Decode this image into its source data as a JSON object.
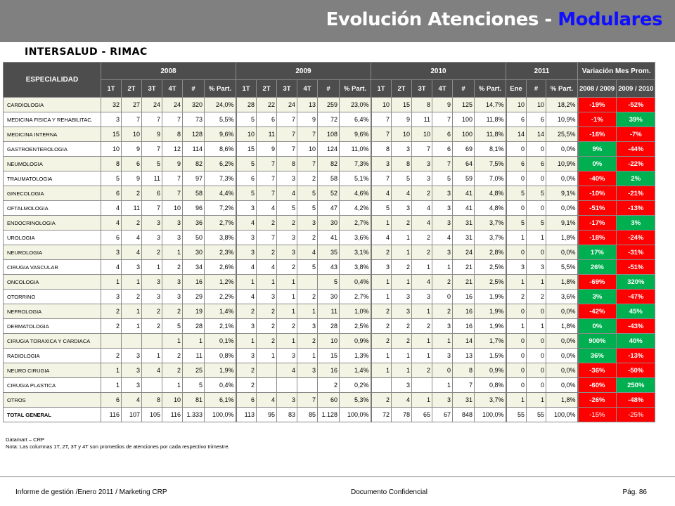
{
  "header": {
    "title_main": "Evolución Atenciones - ",
    "title_highlight": "Modulares"
  },
  "subtitle": "INTERSALUD - RIMAC",
  "table": {
    "especialidad_label": "ESPECIALIDAD",
    "years": [
      "2008",
      "2009",
      "2010",
      "2011"
    ],
    "variation_label": "Variación Mes Prom.",
    "variation_sub": [
      "2008 / 2009",
      "2009 / 2010"
    ],
    "subcols_year": [
      "1T",
      "2T",
      "3T",
      "4T",
      "#",
      "% Part."
    ],
    "subcols_2011": [
      "Ene",
      "#",
      "% Part."
    ],
    "rows": [
      {
        "name": "CARDIOLOGIA",
        "y2008": [
          "32",
          "27",
          "24",
          "24",
          "320",
          "24,0%"
        ],
        "y2009": [
          "28",
          "22",
          "24",
          "13",
          "259",
          "23,0%"
        ],
        "y2010": [
          "10",
          "15",
          "8",
          "9",
          "125",
          "14,7%"
        ],
        "y2011": [
          "10",
          "10",
          "18,2%"
        ],
        "var": [
          "-19%",
          "-52%"
        ],
        "var_sign": [
          "neg",
          "neg"
        ]
      },
      {
        "name": "MEDICINA FISICA Y REHABILITAC.",
        "y2008": [
          "3",
          "7",
          "7",
          "7",
          "73",
          "5,5%"
        ],
        "y2009": [
          "5",
          "6",
          "7",
          "9",
          "72",
          "6,4%"
        ],
        "y2010": [
          "7",
          "9",
          "11",
          "7",
          "100",
          "11,8%"
        ],
        "y2011": [
          "6",
          "6",
          "10,9%"
        ],
        "var": [
          "-1%",
          "39%"
        ],
        "var_sign": [
          "neg",
          "pos"
        ]
      },
      {
        "name": "MEDICINA INTERNA",
        "y2008": [
          "15",
          "10",
          "9",
          "8",
          "128",
          "9,6%"
        ],
        "y2009": [
          "10",
          "11",
          "7",
          "7",
          "108",
          "9,6%"
        ],
        "y2010": [
          "7",
          "10",
          "10",
          "6",
          "100",
          "11,8%"
        ],
        "y2011": [
          "14",
          "14",
          "25,5%"
        ],
        "var": [
          "-16%",
          "-7%"
        ],
        "var_sign": [
          "neg",
          "neg"
        ]
      },
      {
        "name": "GASTROENTEROLOGIA",
        "y2008": [
          "10",
          "9",
          "7",
          "12",
          "114",
          "8,6%"
        ],
        "y2009": [
          "15",
          "9",
          "7",
          "10",
          "124",
          "11,0%"
        ],
        "y2010": [
          "8",
          "3",
          "7",
          "6",
          "69",
          "8,1%"
        ],
        "y2011": [
          "0",
          "0",
          "0,0%"
        ],
        "var": [
          "9%",
          "-44%"
        ],
        "var_sign": [
          "pos",
          "neg"
        ]
      },
      {
        "name": "NEUMOLOGIA",
        "y2008": [
          "8",
          "6",
          "5",
          "9",
          "82",
          "6,2%"
        ],
        "y2009": [
          "5",
          "7",
          "8",
          "7",
          "82",
          "7,3%"
        ],
        "y2010": [
          "3",
          "8",
          "3",
          "7",
          "64",
          "7,5%"
        ],
        "y2011": [
          "6",
          "6",
          "10,9%"
        ],
        "var": [
          "0%",
          "-22%"
        ],
        "var_sign": [
          "pos",
          "neg"
        ]
      },
      {
        "name": "TRAUMATOLOGIA",
        "y2008": [
          "5",
          "9",
          "11",
          "7",
          "97",
          "7,3%"
        ],
        "y2009": [
          "6",
          "7",
          "3",
          "2",
          "58",
          "5,1%"
        ],
        "y2010": [
          "7",
          "5",
          "3",
          "5",
          "59",
          "7,0%"
        ],
        "y2011": [
          "0",
          "0",
          "0,0%"
        ],
        "var": [
          "-40%",
          "2%"
        ],
        "var_sign": [
          "neg",
          "pos"
        ]
      },
      {
        "name": "GINECOLOGIA",
        "y2008": [
          "6",
          "2",
          "6",
          "7",
          "58",
          "4,4%"
        ],
        "y2009": [
          "5",
          "7",
          "4",
          "5",
          "52",
          "4,6%"
        ],
        "y2010": [
          "4",
          "4",
          "2",
          "3",
          "41",
          "4,8%"
        ],
        "y2011": [
          "5",
          "5",
          "9,1%"
        ],
        "var": [
          "-10%",
          "-21%"
        ],
        "var_sign": [
          "neg",
          "neg"
        ]
      },
      {
        "name": "OFTALMOLOGIA",
        "y2008": [
          "4",
          "11",
          "7",
          "10",
          "96",
          "7,2%"
        ],
        "y2009": [
          "3",
          "4",
          "5",
          "5",
          "47",
          "4,2%"
        ],
        "y2010": [
          "5",
          "3",
          "4",
          "3",
          "41",
          "4,8%"
        ],
        "y2011": [
          "0",
          "0",
          "0,0%"
        ],
        "var": [
          "-51%",
          "-13%"
        ],
        "var_sign": [
          "neg",
          "neg"
        ]
      },
      {
        "name": "ENDOCRINOLOGIA",
        "y2008": [
          "4",
          "2",
          "3",
          "3",
          "36",
          "2,7%"
        ],
        "y2009": [
          "4",
          "2",
          "2",
          "3",
          "30",
          "2,7%"
        ],
        "y2010": [
          "1",
          "2",
          "4",
          "3",
          "31",
          "3,7%"
        ],
        "y2011": [
          "5",
          "5",
          "9,1%"
        ],
        "var": [
          "-17%",
          "3%"
        ],
        "var_sign": [
          "neg",
          "pos"
        ]
      },
      {
        "name": "UROLOGIA",
        "y2008": [
          "6",
          "4",
          "3",
          "3",
          "50",
          "3,8%"
        ],
        "y2009": [
          "3",
          "7",
          "3",
          "2",
          "41",
          "3,6%"
        ],
        "y2010": [
          "4",
          "1",
          "2",
          "4",
          "31",
          "3,7%"
        ],
        "y2011": [
          "1",
          "1",
          "1,8%"
        ],
        "var": [
          "-18%",
          "-24%"
        ],
        "var_sign": [
          "neg",
          "neg"
        ]
      },
      {
        "name": "NEUROLOGIA",
        "y2008": [
          "3",
          "4",
          "2",
          "1",
          "30",
          "2,3%"
        ],
        "y2009": [
          "3",
          "2",
          "3",
          "4",
          "35",
          "3,1%"
        ],
        "y2010": [
          "2",
          "1",
          "2",
          "3",
          "24",
          "2,8%"
        ],
        "y2011": [
          "0",
          "0",
          "0,0%"
        ],
        "var": [
          "17%",
          "-31%"
        ],
        "var_sign": [
          "pos",
          "neg"
        ]
      },
      {
        "name": "CIRUGIA VASCULAR",
        "y2008": [
          "4",
          "3",
          "1",
          "2",
          "34",
          "2,6%"
        ],
        "y2009": [
          "4",
          "4",
          "2",
          "5",
          "43",
          "3,8%"
        ],
        "y2010": [
          "3",
          "2",
          "1",
          "1",
          "21",
          "2,5%"
        ],
        "y2011": [
          "3",
          "3",
          "5,5%"
        ],
        "var": [
          "26%",
          "-51%"
        ],
        "var_sign": [
          "pos",
          "neg"
        ]
      },
      {
        "name": "ONCOLOGIA",
        "y2008": [
          "1",
          "1",
          "3",
          "3",
          "16",
          "1,2%"
        ],
        "y2009": [
          "1",
          "1",
          "1",
          "",
          "5",
          "0,4%"
        ],
        "y2010": [
          "1",
          "1",
          "4",
          "2",
          "21",
          "2,5%"
        ],
        "y2011": [
          "1",
          "1",
          "1,8%"
        ],
        "var": [
          "-69%",
          "320%"
        ],
        "var_sign": [
          "neg",
          "pos"
        ]
      },
      {
        "name": "OTORRINO",
        "y2008": [
          "3",
          "2",
          "3",
          "3",
          "29",
          "2,2%"
        ],
        "y2009": [
          "4",
          "3",
          "1",
          "2",
          "30",
          "2,7%"
        ],
        "y2010": [
          "1",
          "3",
          "3",
          "0",
          "16",
          "1,9%"
        ],
        "y2011": [
          "2",
          "2",
          "3,6%"
        ],
        "var": [
          "3%",
          "-47%"
        ],
        "var_sign": [
          "pos",
          "neg"
        ]
      },
      {
        "name": "NEFROLOGIA",
        "y2008": [
          "2",
          "1",
          "2",
          "2",
          "19",
          "1,4%"
        ],
        "y2009": [
          "2",
          "2",
          "1",
          "1",
          "11",
          "1,0%"
        ],
        "y2010": [
          "2",
          "3",
          "1",
          "2",
          "16",
          "1,9%"
        ],
        "y2011": [
          "0",
          "0",
          "0,0%"
        ],
        "var": [
          "-42%",
          "45%"
        ],
        "var_sign": [
          "neg",
          "pos"
        ]
      },
      {
        "name": "DERMATOLOGIA",
        "y2008": [
          "2",
          "1",
          "2",
          "5",
          "28",
          "2,1%"
        ],
        "y2009": [
          "3",
          "2",
          "2",
          "3",
          "28",
          "2,5%"
        ],
        "y2010": [
          "2",
          "2",
          "2",
          "3",
          "16",
          "1,9%"
        ],
        "y2011": [
          "1",
          "1",
          "1,8%"
        ],
        "var": [
          "0%",
          "-43%"
        ],
        "var_sign": [
          "pos",
          "neg"
        ]
      },
      {
        "name": "CIRUGIA TORAXICA Y CARDIACA",
        "y2008": [
          "",
          "",
          "",
          "1",
          "1",
          "0,1%"
        ],
        "y2009": [
          "1",
          "2",
          "1",
          "2",
          "10",
          "0,9%"
        ],
        "y2010": [
          "2",
          "2",
          "1",
          "1",
          "14",
          "1,7%"
        ],
        "y2011": [
          "0",
          "0",
          "0,0%"
        ],
        "var": [
          "900%",
          "40%"
        ],
        "var_sign": [
          "pos",
          "pos"
        ]
      },
      {
        "name": "RADIOLOGIA",
        "y2008": [
          "2",
          "3",
          "1",
          "2",
          "11",
          "0,8%"
        ],
        "y2009": [
          "3",
          "1",
          "3",
          "1",
          "15",
          "1,3%"
        ],
        "y2010": [
          "1",
          "1",
          "1",
          "3",
          "13",
          "1,5%"
        ],
        "y2011": [
          "0",
          "0",
          "0,0%"
        ],
        "var": [
          "36%",
          "-13%"
        ],
        "var_sign": [
          "pos",
          "neg"
        ]
      },
      {
        "name": "NEURO CIRUGIA",
        "y2008": [
          "1",
          "3",
          "4",
          "2",
          "25",
          "1,9%"
        ],
        "y2009": [
          "2",
          "",
          "4",
          "3",
          "16",
          "1,4%"
        ],
        "y2010": [
          "1",
          "1",
          "2",
          "0",
          "8",
          "0,9%"
        ],
        "y2011": [
          "0",
          "0",
          "0,0%"
        ],
        "var": [
          "-36%",
          "-50%"
        ],
        "var_sign": [
          "neg",
          "neg"
        ]
      },
      {
        "name": "CIRUGIA PLASTICA",
        "y2008": [
          "1",
          "3",
          "",
          "1",
          "5",
          "0,4%"
        ],
        "y2009": [
          "2",
          "",
          "",
          "",
          "2",
          "0,2%"
        ],
        "y2010": [
          "",
          "3",
          "",
          "1",
          "7",
          "0,8%"
        ],
        "y2011": [
          "0",
          "0",
          "0,0%"
        ],
        "var": [
          "-60%",
          "250%"
        ],
        "var_sign": [
          "neg",
          "pos"
        ]
      },
      {
        "name": "OTROS",
        "y2008": [
          "6",
          "4",
          "8",
          "10",
          "81",
          "6,1%"
        ],
        "y2009": [
          "6",
          "4",
          "3",
          "7",
          "60",
          "5,3%"
        ],
        "y2010": [
          "2",
          "4",
          "1",
          "3",
          "31",
          "3,7%"
        ],
        "y2011": [
          "1",
          "1",
          "1,8%"
        ],
        "var": [
          "-26%",
          "-48%"
        ],
        "var_sign": [
          "neg",
          "neg"
        ]
      },
      {
        "name": "TOTAL GENERAL",
        "total": true,
        "y2008": [
          "116",
          "107",
          "105",
          "116",
          "1.333",
          "100,0%"
        ],
        "y2009": [
          "113",
          "95",
          "83",
          "85",
          "1.128",
          "100,0%"
        ],
        "y2010": [
          "72",
          "78",
          "65",
          "67",
          "848",
          "100,0%"
        ],
        "y2011": [
          "55",
          "55",
          "100,0%"
        ],
        "var": [
          "-15%",
          "-25%"
        ],
        "var_sign": [
          "neg",
          "neg"
        ]
      }
    ]
  },
  "notes": {
    "line1": "Datamart – CRP",
    "line2": "Nota: Las columnas 1T, 2T,  3T y 4T  son promedios de atenciones por cada respectivo trimestre."
  },
  "footer": {
    "left": "Informe de gestión /Enero 2011 / Marketing CRP",
    "center": "Documento Confidencial",
    "right": "Pág. 86"
  },
  "colors": {
    "negative": "#ff0000",
    "positive": "#00b050",
    "header_bg": "#4d4d4d",
    "band": "#808080",
    "highlight": "#1010ff"
  }
}
